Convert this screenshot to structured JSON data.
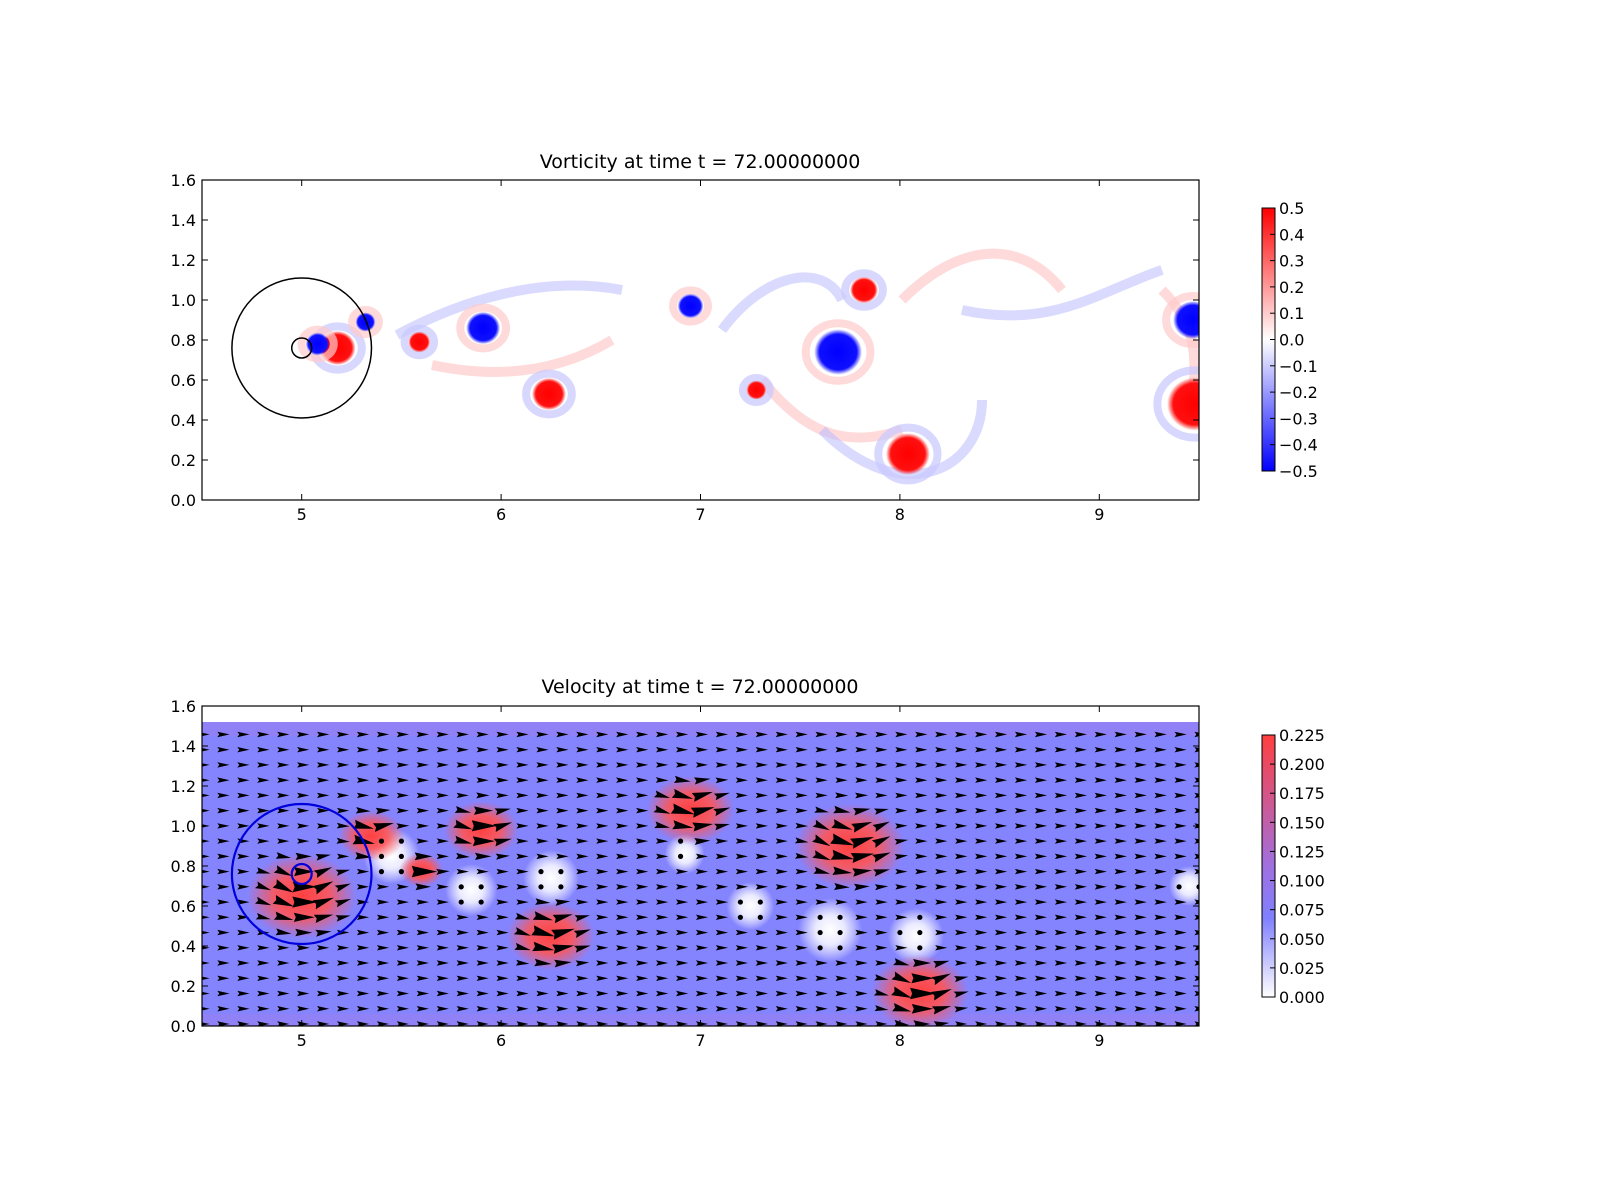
{
  "figure": {
    "panels": [
      {
        "title": "Vorticity at time t =    72.00000000",
        "colorbar_ticks": [
          "0.5",
          "0.4",
          "0.3",
          "0.2",
          "0.1",
          "0.0",
          "−0.1",
          "−0.2",
          "−0.3",
          "−0.4",
          "−0.5"
        ],
        "colors": {
          "positive": "#ff0000",
          "negative": "#0000ff",
          "zero": "#ffffff"
        }
      },
      {
        "title": "Velocity at time t =    72.00000000",
        "colorbar_ticks": [
          "0.225",
          "0.200",
          "0.175",
          "0.150",
          "0.125",
          "0.100",
          "0.075",
          "0.050",
          "0.025",
          "0.000"
        ],
        "colors": {
          "high": "#ff4040",
          "mid": "#8080ff",
          "low": "#ffffff",
          "arrows": "#000000"
        }
      }
    ]
  },
  "chart_data": [
    {
      "type": "heatmap",
      "title": "Vorticity at time t =    72.00000000",
      "xlim": [
        4.5,
        9.5
      ],
      "ylim": [
        0.0,
        1.6
      ],
      "xticks": [
        5,
        6,
        7,
        8,
        9
      ],
      "xtick_labels": [
        "5",
        "6",
        "7",
        "8",
        "9"
      ],
      "yticks": [
        0.0,
        0.2,
        0.4,
        0.6,
        0.8,
        1.0,
        1.2,
        1.4,
        1.6
      ],
      "ytick_labels": [
        "0.0",
        "0.2",
        "0.4",
        "0.6",
        "0.8",
        "1.0",
        "1.2",
        "1.4",
        "1.6"
      ],
      "color_range": [
        -0.5,
        0.5
      ],
      "vortices": [
        {
          "x": 5.18,
          "y": 0.76,
          "sign": 1
        },
        {
          "x": 5.08,
          "y": 0.78,
          "sign": -1
        },
        {
          "x": 5.32,
          "y": 0.89,
          "sign": -1
        },
        {
          "x": 5.59,
          "y": 0.79,
          "sign": 1
        },
        {
          "x": 5.91,
          "y": 0.86,
          "sign": -1
        },
        {
          "x": 6.24,
          "y": 0.53,
          "sign": 1
        },
        {
          "x": 6.95,
          "y": 0.97,
          "sign": -1
        },
        {
          "x": 7.28,
          "y": 0.55,
          "sign": 1
        },
        {
          "x": 7.69,
          "y": 0.74,
          "sign": -1
        },
        {
          "x": 7.82,
          "y": 1.05,
          "sign": 1
        },
        {
          "x": 8.04,
          "y": 0.23,
          "sign": 1
        },
        {
          "x": 9.47,
          "y": 0.9,
          "sign": -1
        },
        {
          "x": 9.48,
          "y": 0.48,
          "sign": 1
        }
      ],
      "circles": [
        {
          "cx": 5.0,
          "cy": 0.76,
          "r": 0.35
        },
        {
          "cx": 5.0,
          "cy": 0.76,
          "r": 0.05
        }
      ]
    },
    {
      "type": "heatmap",
      "title": "Velocity at time t =    72.00000000",
      "xlim": [
        4.5,
        9.5
      ],
      "ylim": [
        0.0,
        1.6
      ],
      "xticks": [
        5,
        6,
        7,
        8,
        9
      ],
      "xtick_labels": [
        "5",
        "6",
        "7",
        "8",
        "9"
      ],
      "yticks": [
        0.0,
        0.2,
        0.4,
        0.6,
        0.8,
        1.0,
        1.2,
        1.4,
        1.6
      ],
      "ytick_labels": [
        "0.0",
        "0.2",
        "0.4",
        "0.6",
        "0.8",
        "1.0",
        "1.2",
        "1.4",
        "1.6"
      ],
      "color_range": [
        0.0,
        0.225
      ],
      "field_top": 1.52,
      "background_speed": 0.1,
      "fast_regions": [
        {
          "x": 5.0,
          "y": 0.65,
          "r": 0.25
        },
        {
          "x": 5.35,
          "y": 0.95,
          "r": 0.15
        },
        {
          "x": 5.9,
          "y": 0.98,
          "r": 0.17
        },
        {
          "x": 5.6,
          "y": 0.78,
          "r": 0.1
        },
        {
          "x": 6.25,
          "y": 0.45,
          "r": 0.2
        },
        {
          "x": 6.95,
          "y": 1.08,
          "r": 0.2
        },
        {
          "x": 7.75,
          "y": 0.9,
          "r": 0.25
        },
        {
          "x": 8.1,
          "y": 0.17,
          "r": 0.22
        }
      ],
      "slow_regions": [
        {
          "x": 5.45,
          "y": 0.85,
          "r": 0.14
        },
        {
          "x": 5.85,
          "y": 0.68,
          "r": 0.13
        },
        {
          "x": 6.25,
          "y": 0.74,
          "r": 0.14
        },
        {
          "x": 6.92,
          "y": 0.86,
          "r": 0.1
        },
        {
          "x": 7.25,
          "y": 0.6,
          "r": 0.12
        },
        {
          "x": 7.65,
          "y": 0.48,
          "r": 0.16
        },
        {
          "x": 8.08,
          "y": 0.45,
          "r": 0.14
        },
        {
          "x": 9.45,
          "y": 0.7,
          "r": 0.1
        }
      ],
      "circles": [
        {
          "cx": 5.0,
          "cy": 0.76,
          "r": 0.35
        },
        {
          "cx": 5.0,
          "cy": 0.76,
          "r": 0.05
        }
      ]
    }
  ]
}
